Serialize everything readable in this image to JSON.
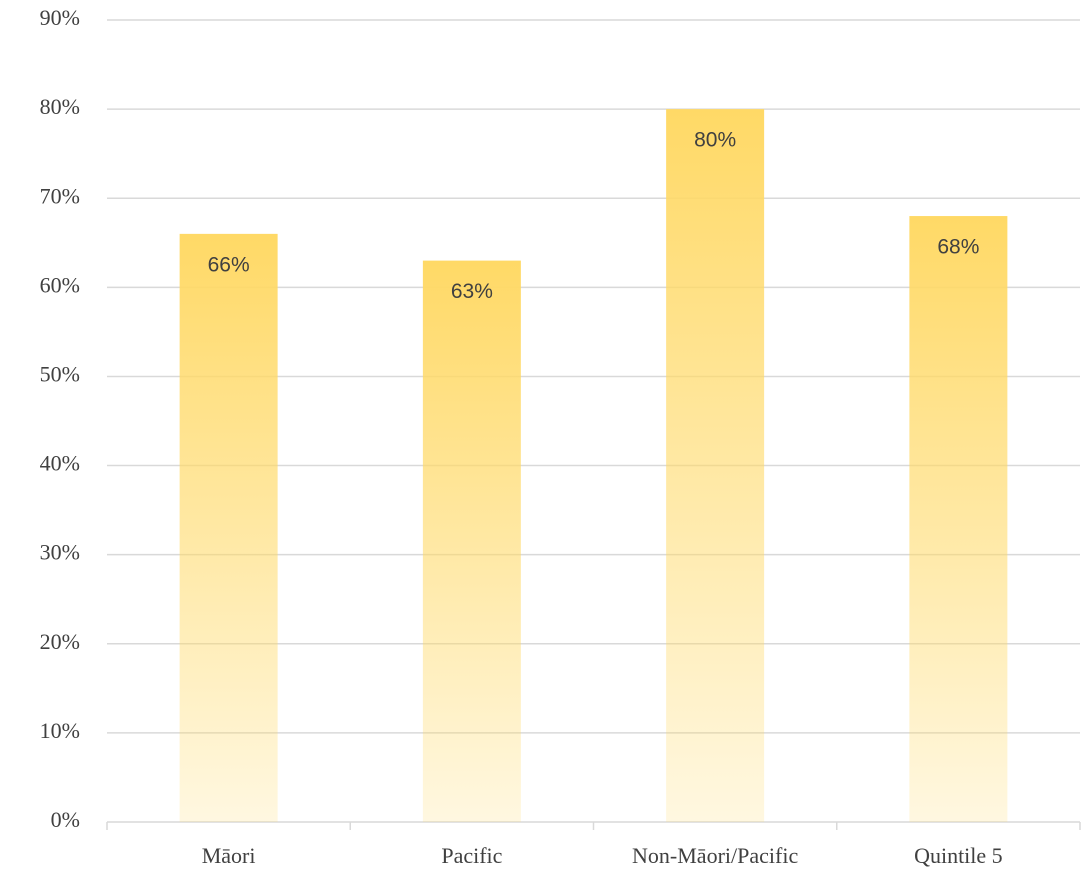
{
  "chart_data": {
    "type": "bar",
    "categories": [
      "Māori",
      "Pacific",
      "Non-Māori/Pacific",
      "Quintile 5"
    ],
    "values": [
      66,
      63,
      80,
      68
    ],
    "value_labels": [
      "66%",
      "63%",
      "80%",
      "68%"
    ],
    "color": "#ffd966",
    "ylim": [
      0,
      90
    ],
    "yticks": [
      {
        "value": 0,
        "label": "0%"
      },
      {
        "value": 10,
        "label": "10%"
      },
      {
        "value": 20,
        "label": "20%"
      },
      {
        "value": 30,
        "label": "30%"
      },
      {
        "value": 40,
        "label": "40%"
      },
      {
        "value": 50,
        "label": "50%"
      },
      {
        "value": 60,
        "label": "60%"
      },
      {
        "value": 70,
        "label": "70%"
      },
      {
        "value": 80,
        "label": "80%"
      },
      {
        "value": 90,
        "label": "90%"
      }
    ],
    "grid": true
  }
}
